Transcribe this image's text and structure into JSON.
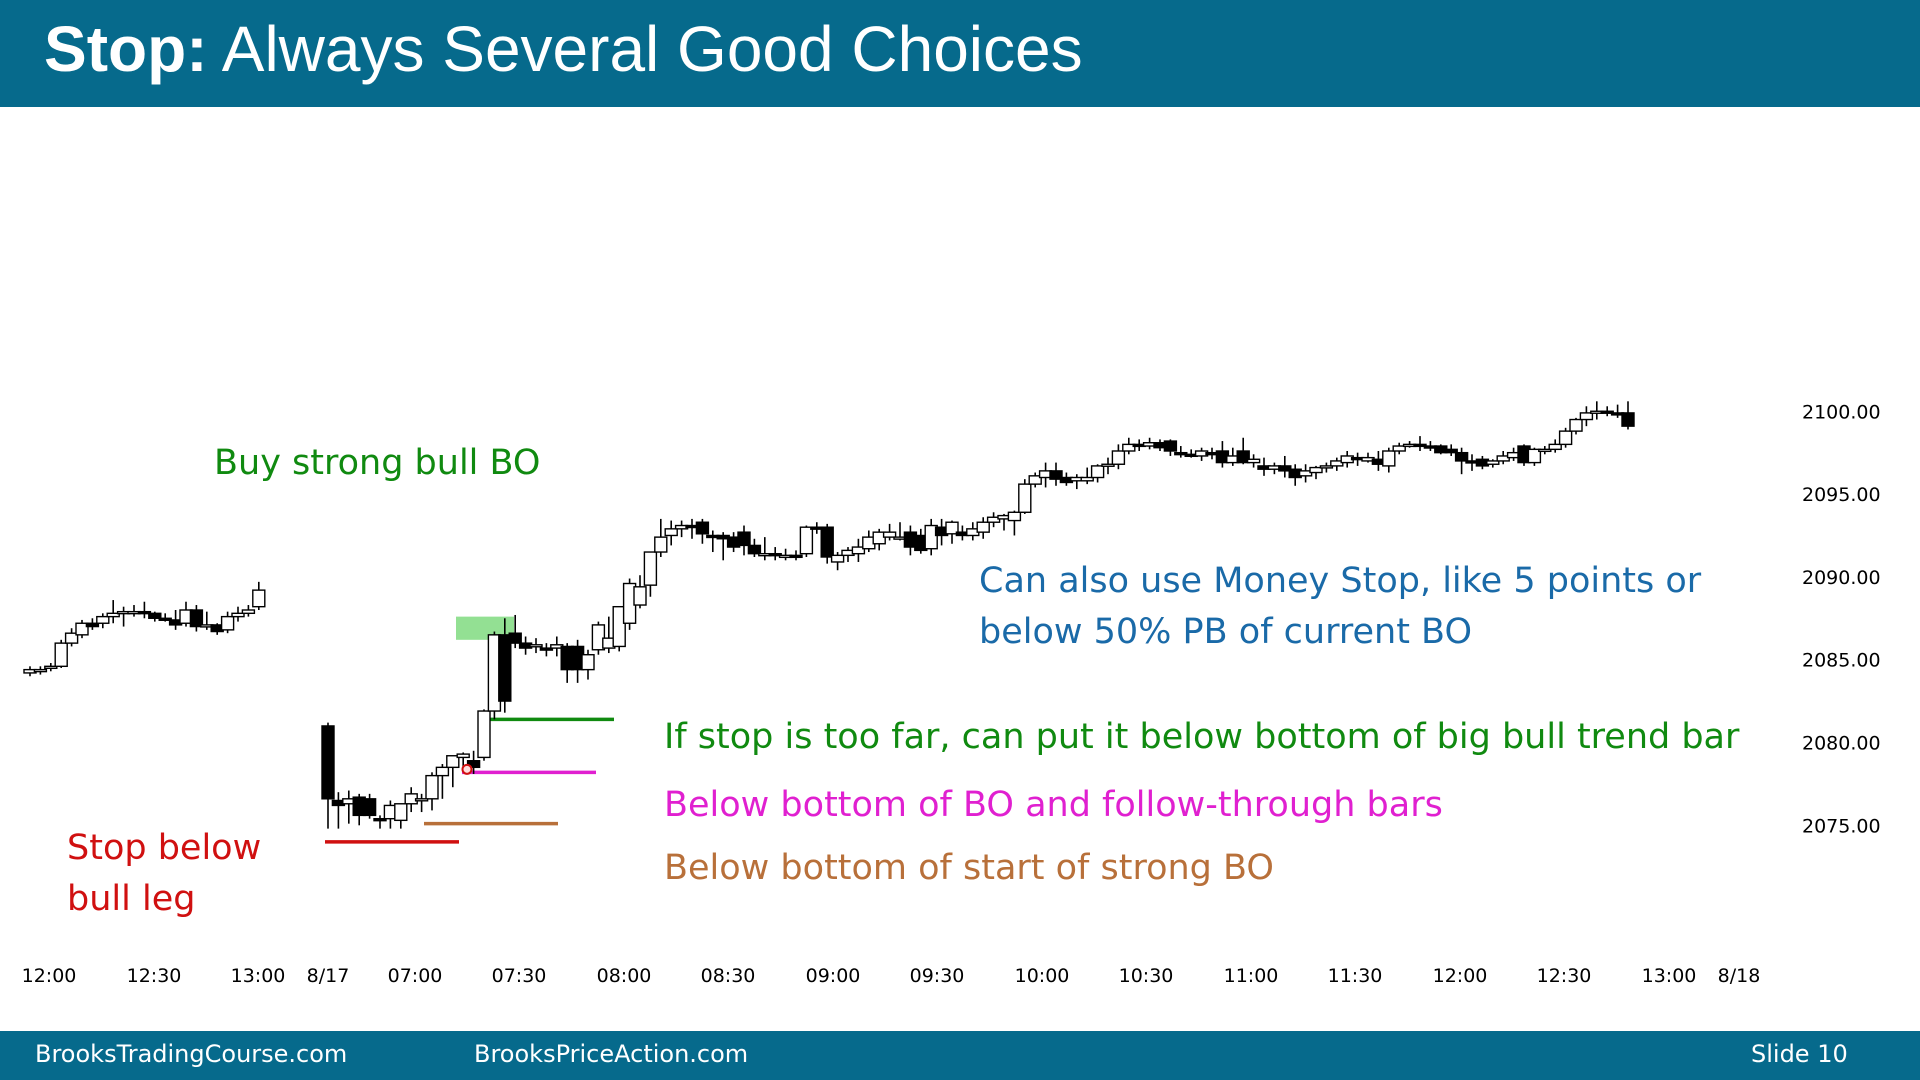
{
  "slide": {
    "title_bold": "Stop:",
    "title_rest": " Always Several Good Choices",
    "footer_left": "BrooksTradingCourse.com",
    "footer_mid": "BrooksPriceAction.com",
    "footer_right": "Slide  10"
  },
  "colors": {
    "header": "#066a8c",
    "annotation_green": "#108a10",
    "annotation_magenta": "#e020d0",
    "annotation_orange": "#b8703a",
    "annotation_red": "#d01010",
    "annotation_blue": "#1a6aa8",
    "highlight": "#6fd66f"
  },
  "annotations": [
    {
      "id": "buy-strong-bull-bo",
      "lines": [
        "Buy strong bull BO"
      ],
      "color": "#108a10"
    },
    {
      "id": "money-stop",
      "lines": [
        "Can also use Money Stop, like 5 points or",
        "below 50% PB of current BO"
      ],
      "color": "#1a6aa8"
    },
    {
      "id": "stop-too-far",
      "lines": [
        "If stop is too far, can put it below bottom of big bull trend bar"
      ],
      "color": "#108a10"
    },
    {
      "id": "below-bo-follow-through",
      "lines": [
        "Below bottom of BO and follow-through bars"
      ],
      "color": "#e020d0"
    },
    {
      "id": "below-start-strong-bo",
      "lines": [
        "Below bottom of start of strong BO"
      ],
      "color": "#b8703a"
    },
    {
      "id": "stop-below-bull-leg",
      "lines": [
        "Stop below",
        "bull leg"
      ],
      "color": "#d01010"
    }
  ],
  "chart_data": {
    "type": "candlestick",
    "y_range": [
      2072,
      2104
    ],
    "y_ticks": [
      "2100.00",
      "2095.00",
      "2090.00",
      "2085.00",
      "2080.00",
      "2075.00"
    ],
    "x_labels": [
      "12:00",
      "12:30",
      "13:00",
      "8/17",
      "07:00",
      "07:30",
      "08:00",
      "08:30",
      "09:00",
      "09:30",
      "10:00",
      "10:30",
      "11:00",
      "11:30",
      "12:00",
      "12:30",
      "13:00",
      "8/18"
    ],
    "day1_candles": [
      [
        2084.2,
        2084.6,
        2084.0,
        2084.4
      ],
      [
        2084.3,
        2084.6,
        2084.1,
        2084.4
      ],
      [
        2084.5,
        2084.8,
        2084.3,
        2084.6
      ],
      [
        2084.6,
        2086.2,
        2084.5,
        2086.0
      ],
      [
        2086.0,
        2086.9,
        2085.8,
        2086.6
      ],
      [
        2086.5,
        2087.4,
        2086.3,
        2087.2
      ],
      [
        2087.2,
        2087.5,
        2086.8,
        2087.0
      ],
      [
        2087.2,
        2087.8,
        2086.9,
        2087.6
      ],
      [
        2087.6,
        2088.6,
        2087.2,
        2087.8
      ],
      [
        2087.8,
        2088.2,
        2087.0,
        2087.9
      ],
      [
        2087.8,
        2088.3,
        2087.6,
        2087.9
      ],
      [
        2087.9,
        2088.5,
        2087.5,
        2087.8
      ],
      [
        2087.8,
        2087.9,
        2087.3,
        2087.5
      ],
      [
        2087.5,
        2087.8,
        2087.3,
        2087.4
      ],
      [
        2087.4,
        2088.0,
        2086.8,
        2087.1
      ],
      [
        2087.2,
        2088.5,
        2087.0,
        2088.0
      ],
      [
        2088.0,
        2088.3,
        2086.7,
        2087.0
      ],
      [
        2087.0,
        2087.9,
        2086.8,
        2087.1
      ],
      [
        2087.1,
        2087.2,
        2086.5,
        2086.7
      ],
      [
        2086.8,
        2087.9,
        2086.6,
        2087.6
      ],
      [
        2087.6,
        2088.2,
        2087.3,
        2087.8
      ],
      [
        2087.8,
        2088.3,
        2087.6,
        2088.0
      ],
      [
        2088.2,
        2089.7,
        2088.0,
        2089.2
      ]
    ],
    "day2_candles": [
      [
        2081.0,
        2081.2,
        2074.8,
        2076.6
      ],
      [
        2076.5,
        2077.0,
        2074.8,
        2076.2
      ],
      [
        2076.3,
        2077.1,
        2075.1,
        2076.6
      ],
      [
        2076.7,
        2076.9,
        2075.0,
        2075.6
      ],
      [
        2076.6,
        2076.9,
        2075.4,
        2075.6
      ],
      [
        2075.4,
        2075.6,
        2074.8,
        2075.3
      ],
      [
        2075.4,
        2076.5,
        2074.8,
        2076.2
      ],
      [
        2075.3,
        2076.3,
        2074.8,
        2076.3
      ],
      [
        2076.3,
        2077.3,
        2075.8,
        2076.9
      ],
      [
        2076.5,
        2076.9,
        2075.8,
        2076.6
      ],
      [
        2076.6,
        2078.2,
        2075.9,
        2078.0
      ],
      [
        2078.0,
        2078.7,
        2076.6,
        2078.5
      ],
      [
        2078.5,
        2079.2,
        2077.3,
        2079.2
      ],
      [
        2079.1,
        2079.4,
        2078.2,
        2079.3
      ],
      [
        2078.9,
        2079.5,
        2078.1,
        2078.5
      ],
      [
        2079.1,
        2082.0,
        2078.9,
        2081.9
      ],
      [
        2081.9,
        2086.7,
        2081.4,
        2086.5
      ],
      [
        2086.5,
        2087.5,
        2081.8,
        2082.5
      ],
      [
        2086.6,
        2087.7,
        2085.7,
        2086.0
      ],
      [
        2086.0,
        2086.4,
        2085.3,
        2085.7
      ],
      [
        2085.8,
        2086.3,
        2085.4,
        2085.9
      ],
      [
        2085.7,
        2086.0,
        2085.2,
        2085.6
      ],
      [
        2085.7,
        2086.4,
        2085.2,
        2085.9
      ],
      [
        2085.8,
        2086.0,
        2083.6,
        2084.4
      ],
      [
        2085.8,
        2086.2,
        2083.6,
        2084.4
      ],
      [
        2084.4,
        2085.6,
        2083.8,
        2085.3
      ],
      [
        2085.6,
        2087.3,
        2085.3,
        2087.1
      ],
      [
        2085.7,
        2087.6,
        2085.4,
        2086.3
      ],
      [
        2085.8,
        2088.2,
        2085.5,
        2088.2
      ],
      [
        2087.2,
        2089.9,
        2086.8,
        2089.6
      ],
      [
        2088.3,
        2090.1,
        2088.1,
        2089.4
      ],
      [
        2089.5,
        2091.5,
        2088.8,
        2091.5
      ],
      [
        2091.5,
        2093.5,
        2091.2,
        2092.4
      ],
      [
        2092.5,
        2093.4,
        2091.9,
        2092.9
      ],
      [
        2092.9,
        2093.4,
        2092.4,
        2093.1
      ],
      [
        2093.1,
        2093.5,
        2092.3,
        2093.0
      ],
      [
        2093.3,
        2093.5,
        2092.0,
        2092.6
      ],
      [
        2092.5,
        2092.8,
        2091.5,
        2092.4
      ],
      [
        2092.5,
        2092.7,
        2091.0,
        2092.3
      ],
      [
        2092.4,
        2092.7,
        2091.5,
        2091.8
      ],
      [
        2092.7,
        2093.1,
        2091.3,
        2091.9
      ],
      [
        2091.9,
        2092.3,
        2091.2,
        2091.4
      ],
      [
        2091.3,
        2092.4,
        2091.0,
        2091.4
      ],
      [
        2091.4,
        2091.8,
        2091.0,
        2091.3
      ],
      [
        2091.3,
        2091.7,
        2091.0,
        2091.3
      ],
      [
        2091.3,
        2091.6,
        2091.0,
        2091.2
      ],
      [
        2091.4,
        2093.1,
        2091.2,
        2093.0
      ],
      [
        2093.0,
        2093.3,
        2092.6,
        2092.9
      ],
      [
        2093.0,
        2093.2,
        2090.8,
        2091.2
      ],
      [
        2090.9,
        2091.5,
        2090.4,
        2091.3
      ],
      [
        2091.3,
        2091.8,
        2090.9,
        2091.6
      ],
      [
        2091.4,
        2092.3,
        2090.9,
        2091.8
      ],
      [
        2091.7,
        2092.8,
        2091.5,
        2092.4
      ],
      [
        2092.0,
        2092.9,
        2091.6,
        2092.7
      ],
      [
        2092.4,
        2093.2,
        2092.2,
        2092.7
      ],
      [
        2092.4,
        2093.3,
        2092.2,
        2092.4
      ],
      [
        2092.7,
        2093.1,
        2091.3,
        2091.8
      ],
      [
        2092.5,
        2092.9,
        2091.4,
        2091.6
      ],
      [
        2091.7,
        2093.5,
        2091.3,
        2093.1
      ],
      [
        2093.0,
        2093.5,
        2091.9,
        2092.5
      ],
      [
        2092.6,
        2093.4,
        2092.0,
        2093.3
      ],
      [
        2092.7,
        2093.1,
        2092.2,
        2092.5
      ],
      [
        2092.5,
        2093.3,
        2092.2,
        2092.9
      ],
      [
        2092.7,
        2093.6,
        2092.3,
        2093.3
      ],
      [
        2093.3,
        2093.9,
        2093.0,
        2093.6
      ],
      [
        2093.5,
        2093.8,
        2092.8,
        2093.7
      ],
      [
        2093.4,
        2094.0,
        2092.5,
        2093.9
      ],
      [
        2093.9,
        2095.9,
        2093.8,
        2095.6
      ],
      [
        2095.6,
        2096.3,
        2095.4,
        2096.1
      ],
      [
        2096.0,
        2096.9,
        2095.4,
        2096.4
      ],
      [
        2096.4,
        2096.9,
        2095.5,
        2095.9
      ],
      [
        2096.0,
        2096.3,
        2095.5,
        2095.7
      ],
      [
        2095.8,
        2096.2,
        2095.3,
        2096.0
      ],
      [
        2095.8,
        2096.6,
        2095.6,
        2096.0
      ],
      [
        2096.0,
        2096.8,
        2095.7,
        2096.7
      ],
      [
        2096.7,
        2097.2,
        2096.2,
        2096.8
      ],
      [
        2096.8,
        2098.0,
        2096.5,
        2097.6
      ],
      [
        2097.6,
        2098.4,
        2097.4,
        2098.0
      ],
      [
        2098.0,
        2098.3,
        2097.6,
        2097.9
      ],
      [
        2097.9,
        2098.4,
        2097.7,
        2098.1
      ],
      [
        2098.1,
        2098.3,
        2097.6,
        2097.8
      ],
      [
        2098.2,
        2098.3,
        2097.3,
        2097.6
      ],
      [
        2097.5,
        2097.9,
        2097.2,
        2097.4
      ],
      [
        2097.4,
        2097.7,
        2097.2,
        2097.3
      ],
      [
        2097.3,
        2097.8,
        2097.0,
        2097.6
      ],
      [
        2097.5,
        2097.8,
        2097.1,
        2097.4
      ],
      [
        2097.6,
        2098.2,
        2096.6,
        2096.9
      ],
      [
        2096.9,
        2097.8,
        2096.7,
        2097.3
      ],
      [
        2097.6,
        2098.4,
        2096.8,
        2096.9
      ],
      [
        2096.9,
        2097.4,
        2096.6,
        2097.1
      ],
      [
        2096.7,
        2097.2,
        2096.1,
        2096.5
      ],
      [
        2096.5,
        2096.9,
        2096.2,
        2096.7
      ],
      [
        2096.7,
        2097.3,
        2096.0,
        2096.4
      ],
      [
        2096.5,
        2096.8,
        2095.5,
        2096.0
      ],
      [
        2096.1,
        2096.8,
        2095.7,
        2096.4
      ],
      [
        2096.3,
        2096.7,
        2095.9,
        2096.6
      ],
      [
        2096.6,
        2096.9,
        2096.3,
        2096.7
      ],
      [
        2096.7,
        2097.2,
        2096.4,
        2097.0
      ],
      [
        2096.9,
        2097.6,
        2096.6,
        2097.3
      ],
      [
        2097.2,
        2097.5,
        2096.7,
        2097.1
      ],
      [
        2097.0,
        2097.5,
        2096.9,
        2097.2
      ],
      [
        2097.1,
        2097.6,
        2096.4,
        2096.8
      ],
      [
        2096.7,
        2097.8,
        2096.3,
        2097.6
      ],
      [
        2097.6,
        2098.1,
        2097.4,
        2097.9
      ],
      [
        2097.9,
        2098.2,
        2097.8,
        2098.0
      ],
      [
        2098.0,
        2098.5,
        2097.6,
        2097.9
      ],
      [
        2097.9,
        2098.2,
        2097.6,
        2097.8
      ],
      [
        2097.9,
        2098.0,
        2097.4,
        2097.5
      ],
      [
        2097.7,
        2098.0,
        2097.3,
        2097.5
      ],
      [
        2097.5,
        2097.8,
        2096.2,
        2097.0
      ],
      [
        2097.0,
        2097.4,
        2096.4,
        2096.9
      ],
      [
        2097.1,
        2097.3,
        2096.5,
        2096.7
      ],
      [
        2096.8,
        2097.1,
        2096.6,
        2097.0
      ],
      [
        2097.0,
        2097.6,
        2096.8,
        2097.3
      ],
      [
        2097.2,
        2097.8,
        2097.0,
        2097.5
      ],
      [
        2097.9,
        2098.0,
        2096.7,
        2096.9
      ],
      [
        2096.9,
        2097.8,
        2096.7,
        2097.7
      ],
      [
        2097.7,
        2097.9,
        2097.4,
        2097.7
      ],
      [
        2097.7,
        2098.3,
        2097.5,
        2098.0
      ],
      [
        2098.0,
        2099.0,
        2097.8,
        2098.8
      ],
      [
        2098.8,
        2099.6,
        2098.6,
        2099.5
      ],
      [
        2099.5,
        2100.3,
        2099.1,
        2099.9
      ],
      [
        2099.9,
        2100.6,
        2099.5,
        2100.0
      ],
      [
        2100.0,
        2100.3,
        2099.7,
        2099.9
      ],
      [
        2099.9,
        2100.4,
        2099.6,
        2099.8
      ],
      [
        2099.9,
        2100.6,
        2098.9,
        2099.1
      ]
    ]
  }
}
